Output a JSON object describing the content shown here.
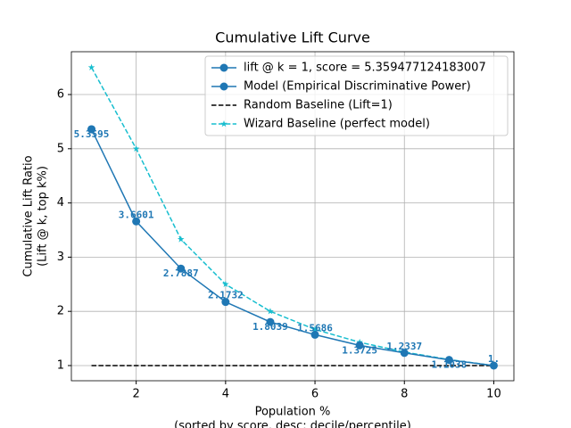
{
  "chart_data": {
    "type": "line",
    "title": "Cumulative Lift Curve",
    "xlabel": [
      "Population %",
      "(sorted by score, desc; decile/percentile)"
    ],
    "ylabel": [
      "Cumulative Lift Ratio",
      "(Lift @ k, top k%)"
    ],
    "xlim": [
      0.55,
      10.45
    ],
    "ylim": [
      0.72,
      6.79
    ],
    "xticks": [
      2,
      4,
      6,
      8,
      10
    ],
    "yticks": [
      1,
      2,
      3,
      4,
      5,
      6
    ],
    "grid": true,
    "legend": "upper right",
    "series": [
      {
        "name": "lift @ k = 1, score = 5.359477124183007",
        "color": "#1f77b4",
        "marker": "o",
        "linestyle": "solid",
        "x": [
          1
        ],
        "values": [
          5.3595
        ]
      },
      {
        "name": "Model (Empirical Discriminative Power)",
        "color": "#1f77b4",
        "marker": "o",
        "linestyle": "solid",
        "x": [
          1,
          2,
          3,
          4,
          5,
          6,
          7,
          8,
          9,
          10
        ],
        "values": [
          5.3595,
          3.6601,
          2.7887,
          2.1732,
          1.8039,
          1.5686,
          1.3725,
          1.2337,
          1.1038,
          1.0
        ],
        "value_labels": [
          "5.3595",
          "3.6601",
          "2.7887",
          "2.1732",
          "1.8039",
          "1.5686",
          "1.3725",
          "1.2337",
          "1.1038",
          "1."
        ]
      },
      {
        "name": "Random Baseline (Lift=1)",
        "color": "#000000",
        "marker": "none",
        "linestyle": "dashed",
        "x": [
          1,
          10
        ],
        "values": [
          1,
          1
        ]
      },
      {
        "name": "Wizard Baseline (perfect model)",
        "color": "#17becf",
        "marker": "*",
        "linestyle": "dashed",
        "x": [
          1,
          2,
          3,
          4,
          5,
          6,
          7,
          8,
          9,
          10
        ],
        "values": [
          6.5,
          5.0,
          3.33,
          2.5,
          2.0,
          1.667,
          1.43,
          1.25,
          1.11,
          1.0
        ]
      }
    ]
  }
}
